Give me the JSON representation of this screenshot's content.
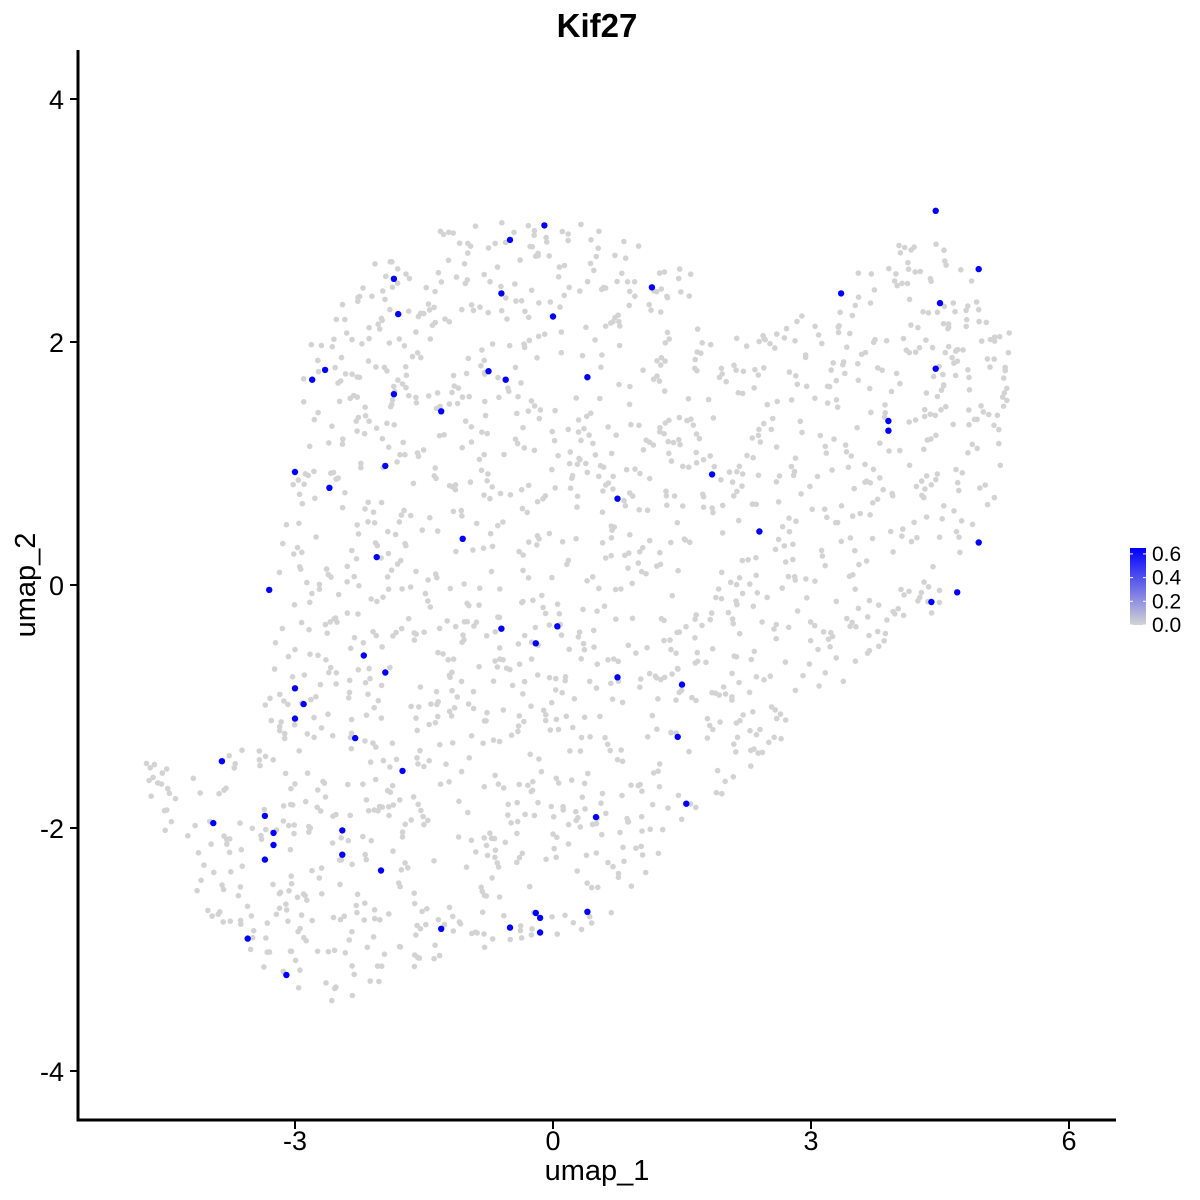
{
  "chart_data": {
    "type": "scatter",
    "title": "Kif27",
    "xlabel": "umap_1",
    "ylabel": "umap_2",
    "xlim": [
      -5.4,
      6.6
    ],
    "ylim": [
      -4.3,
      4.4
    ],
    "x_ticks": [
      -3,
      0,
      3,
      6
    ],
    "y_ticks": [
      -4,
      -2,
      0,
      2,
      4
    ],
    "x_tick_labels": [
      "-3",
      "0",
      "3",
      "6"
    ],
    "y_tick_labels": [
      "-4",
      "-2",
      "0",
      "2",
      "4"
    ],
    "grid": false,
    "color_scale": {
      "low": "#d3d3d3",
      "high": "#0000ff",
      "ticks": [
        0.0,
        0.2,
        0.4,
        0.6
      ],
      "tick_labels": [
        "0.0",
        "0.2",
        "0.4",
        "0.6"
      ],
      "range": [
        0,
        0.65
      ],
      "legend_position": "right"
    },
    "background_region": {
      "description_colors": "#d3d3d3",
      "polygon": [
        [
          -4.8,
          -1.2
        ],
        [
          -4.2,
          -1.6
        ],
        [
          -3.6,
          -1.2
        ],
        [
          -3.2,
          -0.4
        ],
        [
          -3.2,
          0.4
        ],
        [
          -3.0,
          1.2
        ],
        [
          -2.9,
          1.9
        ],
        [
          -2.4,
          2.4
        ],
        [
          -2.0,
          2.7
        ],
        [
          -1.4,
          2.9
        ],
        [
          -0.6,
          3.0
        ],
        [
          0.3,
          3.0
        ],
        [
          1.0,
          2.8
        ],
        [
          1.6,
          2.6
        ],
        [
          2.0,
          2.1
        ],
        [
          2.6,
          2.1
        ],
        [
          3.1,
          2.3
        ],
        [
          3.6,
          2.6
        ],
        [
          4.2,
          2.9
        ],
        [
          4.6,
          2.8
        ],
        [
          5.1,
          2.5
        ],
        [
          5.35,
          2.1
        ],
        [
          5.3,
          1.3
        ],
        [
          5.1,
          0.6
        ],
        [
          4.9,
          0.2
        ],
        [
          4.4,
          -0.3
        ],
        [
          3.8,
          -0.5
        ],
        [
          3.4,
          -0.8
        ],
        [
          3.1,
          -1.1
        ],
        [
          2.7,
          -1.3
        ],
        [
          2.2,
          -1.6
        ],
        [
          1.8,
          -1.8
        ],
        [
          1.4,
          -2.1
        ],
        [
          1.0,
          -2.5
        ],
        [
          0.7,
          -2.7
        ],
        [
          0.2,
          -2.9
        ],
        [
          -0.3,
          -3.0
        ],
        [
          -0.9,
          -3.0
        ],
        [
          -1.5,
          -3.1
        ],
        [
          -2.0,
          -3.3
        ],
        [
          -2.6,
          -3.5
        ],
        [
          -3.3,
          -3.2
        ],
        [
          -3.9,
          -2.8
        ],
        [
          -4.4,
          -2.3
        ],
        [
          -4.7,
          -1.8
        ]
      ],
      "count": 1700
    },
    "points": [
      {
        "x": 4.45,
        "y": 3.08,
        "value": 0.65
      },
      {
        "x": -0.1,
        "y": 2.96,
        "value": 0.65
      },
      {
        "x": -0.5,
        "y": 2.84,
        "value": 0.65
      },
      {
        "x": 4.95,
        "y": 2.6,
        "value": 0.65
      },
      {
        "x": -1.85,
        "y": 2.52,
        "value": 0.65
      },
      {
        "x": 1.15,
        "y": 2.45,
        "value": 0.65
      },
      {
        "x": -0.6,
        "y": 2.4,
        "value": 0.65
      },
      {
        "x": 3.35,
        "y": 2.4,
        "value": 0.65
      },
      {
        "x": 4.5,
        "y": 2.32,
        "value": 0.65
      },
      {
        "x": -1.8,
        "y": 2.23,
        "value": 0.65
      },
      {
        "x": 0.0,
        "y": 2.21,
        "value": 0.65
      },
      {
        "x": 4.45,
        "y": 1.78,
        "value": 0.65
      },
      {
        "x": -2.65,
        "y": 1.77,
        "value": 0.65
      },
      {
        "x": -0.75,
        "y": 1.76,
        "value": 0.65
      },
      {
        "x": 0.4,
        "y": 1.71,
        "value": 0.65
      },
      {
        "x": -0.55,
        "y": 1.69,
        "value": 0.65
      },
      {
        "x": -2.8,
        "y": 1.69,
        "value": 0.65
      },
      {
        "x": -1.85,
        "y": 1.57,
        "value": 0.65
      },
      {
        "x": -1.3,
        "y": 1.43,
        "value": 0.65
      },
      {
        "x": 3.9,
        "y": 1.35,
        "value": 0.65
      },
      {
        "x": 3.9,
        "y": 1.27,
        "value": 0.65
      },
      {
        "x": -1.95,
        "y": 0.98,
        "value": 0.65
      },
      {
        "x": -3.0,
        "y": 0.93,
        "value": 0.65
      },
      {
        "x": 1.85,
        "y": 0.91,
        "value": 0.65
      },
      {
        "x": -2.6,
        "y": 0.8,
        "value": 0.65
      },
      {
        "x": 0.75,
        "y": 0.71,
        "value": 0.65
      },
      {
        "x": 2.4,
        "y": 0.44,
        "value": 0.65
      },
      {
        "x": -1.05,
        "y": 0.38,
        "value": 0.65
      },
      {
        "x": 4.95,
        "y": 0.35,
        "value": 0.65
      },
      {
        "x": -2.05,
        "y": 0.23,
        "value": 0.65
      },
      {
        "x": -3.3,
        "y": -0.04,
        "value": 0.65
      },
      {
        "x": 4.7,
        "y": -0.06,
        "value": 0.65
      },
      {
        "x": 4.4,
        "y": -0.14,
        "value": 0.65
      },
      {
        "x": 0.05,
        "y": -0.34,
        "value": 0.65
      },
      {
        "x": -0.6,
        "y": -0.36,
        "value": 0.65
      },
      {
        "x": -0.2,
        "y": -0.48,
        "value": 0.65
      },
      {
        "x": -2.2,
        "y": -0.58,
        "value": 0.65
      },
      {
        "x": -1.95,
        "y": -0.72,
        "value": 0.65
      },
      {
        "x": 0.75,
        "y": -0.76,
        "value": 0.65
      },
      {
        "x": 1.5,
        "y": -0.82,
        "value": 0.65
      },
      {
        "x": -3.0,
        "y": -0.85,
        "value": 0.65
      },
      {
        "x": -2.9,
        "y": -0.98,
        "value": 0.65
      },
      {
        "x": -3.0,
        "y": -1.1,
        "value": 0.65
      },
      {
        "x": 1.45,
        "y": -1.25,
        "value": 0.65
      },
      {
        "x": -2.3,
        "y": -1.26,
        "value": 0.65
      },
      {
        "x": -3.85,
        "y": -1.45,
        "value": 0.65
      },
      {
        "x": -1.75,
        "y": -1.53,
        "value": 0.65
      },
      {
        "x": 1.55,
        "y": -1.8,
        "value": 0.65
      },
      {
        "x": -3.35,
        "y": -1.9,
        "value": 0.65
      },
      {
        "x": 0.5,
        "y": -1.91,
        "value": 0.65
      },
      {
        "x": -3.95,
        "y": -1.96,
        "value": 0.65
      },
      {
        "x": -2.45,
        "y": -2.02,
        "value": 0.65
      },
      {
        "x": -3.25,
        "y": -2.04,
        "value": 0.65
      },
      {
        "x": -3.25,
        "y": -2.14,
        "value": 0.65
      },
      {
        "x": -2.45,
        "y": -2.22,
        "value": 0.65
      },
      {
        "x": -3.35,
        "y": -2.26,
        "value": 0.65
      },
      {
        "x": -2.0,
        "y": -2.35,
        "value": 0.65
      },
      {
        "x": 0.4,
        "y": -2.69,
        "value": 0.65
      },
      {
        "x": -0.2,
        "y": -2.7,
        "value": 0.65
      },
      {
        "x": -0.15,
        "y": -2.74,
        "value": 0.65
      },
      {
        "x": -1.3,
        "y": -2.83,
        "value": 0.65
      },
      {
        "x": -0.5,
        "y": -2.82,
        "value": 0.65
      },
      {
        "x": -0.15,
        "y": -2.86,
        "value": 0.65
      },
      {
        "x": -3.55,
        "y": -2.91,
        "value": 0.65
      },
      {
        "x": -3.1,
        "y": -3.21,
        "value": 0.65
      }
    ]
  }
}
